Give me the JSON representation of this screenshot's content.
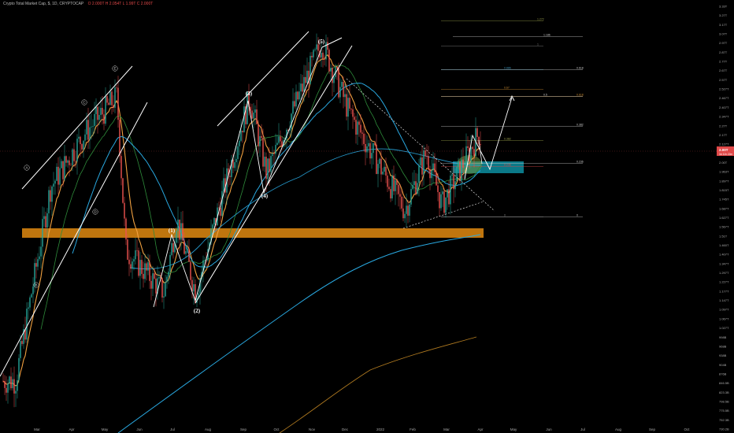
{
  "header": {
    "symbol": "Crypto Total Market Cap, $, 1D, CRYPTOCAP",
    "ohlc": "O 2.000T H 2.054T L 1.99T C 2.000T"
  },
  "price_axis": {
    "labels": [
      "3.33T",
      "3.27T",
      "3.17T",
      "3.07T",
      "2.97T",
      "2.87T",
      "2.77T",
      "2.67T",
      "2.57T",
      "2.527T",
      "2.467T",
      "2.407T",
      "2.347T",
      "2.27T",
      "2.17T",
      "2.127T",
      "2.077T",
      "2.00T",
      "1.963T",
      "1.897T",
      "1.815T",
      "1.745T",
      "1.687T",
      "1.627T",
      "1.567T",
      "1.51T",
      "1.460T",
      "1.407T",
      "1.347T",
      "1.297T",
      "1.227T",
      "1.177T",
      "1.147T",
      "1.097T",
      "1.067T",
      "1.027T",
      "998B",
      "968B",
      "938B",
      "904B",
      "876B",
      "846.5B",
      "823.3B",
      "798.5B",
      "775.5B",
      "752.3B",
      "730.2B"
    ],
    "current_price": "2.00T",
    "current_price_sub": "3d 11h 22m"
  },
  "time_axis": {
    "labels": [
      "Mar",
      "Apr",
      "May",
      "Jun",
      "Jul",
      "Aug",
      "Sep",
      "Oct",
      "Nov",
      "Dec",
      "2022",
      "Feb",
      "Mar",
      "Apr",
      "May",
      "Jun",
      "Jul",
      "Aug",
      "Sep",
      "Oct"
    ]
  },
  "wave_labels": {
    "impulse": [
      "(1)",
      "(2)",
      "(3)",
      "(4)",
      "(5)"
    ],
    "abc": [
      "A",
      "B",
      "C",
      "D",
      "E"
    ]
  },
  "fib_levels": [
    {
      "label": "1.272",
      "price": 3.23,
      "color": "#9aa04a"
    },
    {
      "label": "1.186",
      "price": 3.05,
      "color": "#cccccc"
    },
    {
      "label": "1",
      "price": 2.95,
      "color": "#888888"
    },
    {
      "label": "0.886",
      "price": 2.7,
      "color": "#3a8fb3"
    },
    {
      "label": "0.618",
      "price": 2.7,
      "color": "#cccccc"
    },
    {
      "label": "0.67",
      "price": 2.52,
      "color": "#c98a2f"
    },
    {
      "label": "0.618",
      "price": 2.45,
      "color": "#c98a2f"
    },
    {
      "label": "0.5",
      "price": 2.45,
      "color": "#cccccc"
    },
    {
      "label": "0.382",
      "price": 2.2,
      "color": "#cccccc"
    },
    {
      "label": "0.382",
      "price": 2.09,
      "color": "#9aa04a"
    },
    {
      "label": "0.236",
      "price": 1.92,
      "color": "#cccccc"
    },
    {
      "label": "0.236",
      "price": 1.9,
      "color": "#e04848"
    },
    {
      "label": "0",
      "price": 1.58,
      "color": "#cccccc"
    },
    {
      "label": "0",
      "price": 1.58,
      "color": "#888888"
    }
  ],
  "colors": {
    "background": "#000000",
    "up_candle": "#26a69a",
    "down_candle": "#ef5350",
    "ema_orange": "#f0a040",
    "ma_green": "#2e8b3a",
    "ma_blue": "#29a8e0",
    "ma_dark_orange": "#b07a20",
    "support_zone": "#e08a10",
    "target_box": "#0c7f8f"
  },
  "chart_data": {
    "type": "candlestick",
    "title": "Crypto Total Market Cap, $, 1D, CRYPTOCAP",
    "y_scale": "log",
    "ylim": [
      730,
      3400
    ],
    "ylabel": "",
    "xlabel": "",
    "close_path_key_points": [
      {
        "x": "2021-02-10",
        "y": 870
      },
      {
        "x": "2021-03-13",
        "y": 1760
      },
      {
        "x": "2021-04-13",
        "y": 2150
      },
      {
        "x": "2021-05-11",
        "y": 2450
      },
      {
        "x": "2021-05-19",
        "y": 1400
      },
      {
        "x": "2021-06-22",
        "y": 1200
      },
      {
        "x": "2021-07-03",
        "y": 1570
      },
      {
        "x": "2021-07-20",
        "y": 1200
      },
      {
        "x": "2021-09-06",
        "y": 2450
      },
      {
        "x": "2021-09-21",
        "y": 1850
      },
      {
        "x": "2021-11-09",
        "y": 2990
      },
      {
        "x": "2021-12-04",
        "y": 2300
      },
      {
        "x": "2022-01-22",
        "y": 1620
      },
      {
        "x": "2022-02-10",
        "y": 2000
      },
      {
        "x": "2022-02-24",
        "y": 1650
      },
      {
        "x": "2022-03-29",
        "y": 2150
      },
      {
        "x": "2022-04-02",
        "y": 2000
      }
    ],
    "moving_averages": [
      "EMA (orange)",
      "MA (green)",
      "MA (blue)",
      "MA (dark orange)"
    ],
    "grid": false,
    "legend": "none"
  }
}
